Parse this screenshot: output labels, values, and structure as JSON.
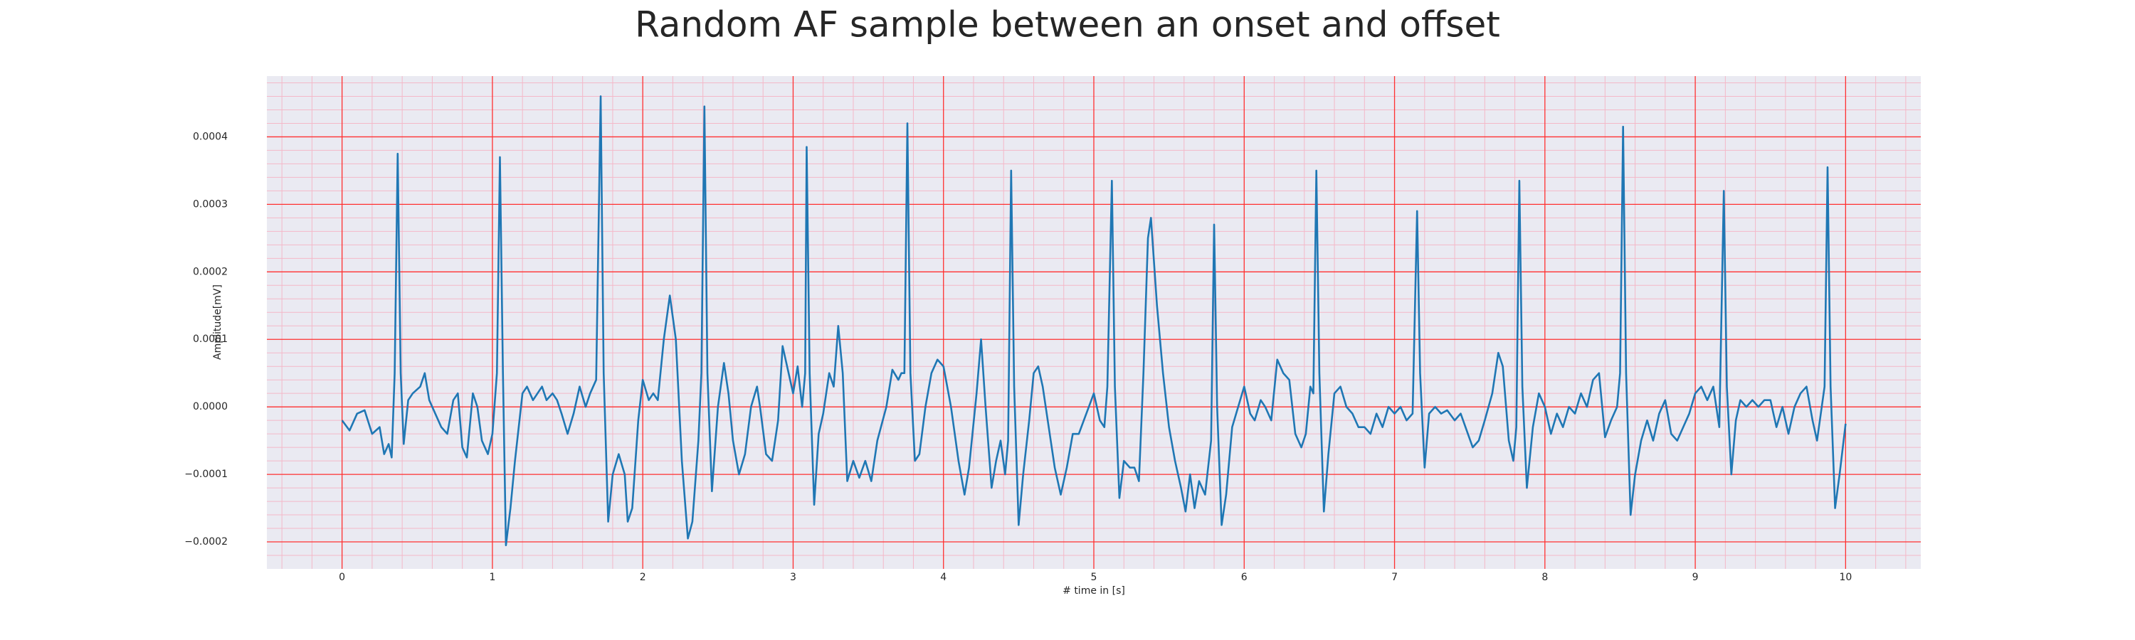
{
  "chart_data": {
    "type": "line",
    "title": "Random AF sample between an onset and offset",
    "xlabel": "# time in [s]",
    "ylabel": "Amplitude[mV]",
    "xlim": [
      -0.5,
      10.5
    ],
    "ylim": [
      -0.00024,
      0.00049
    ],
    "xticks": [
      0,
      1,
      2,
      3,
      4,
      5,
      6,
      7,
      8,
      9,
      10
    ],
    "yticks": [
      {
        "value": -0.0002,
        "label": "−0.0002"
      },
      {
        "value": -0.0001,
        "label": "−0.0001"
      },
      {
        "value": 0,
        "label": "0.0000"
      },
      {
        "value": 0.0001,
        "label": "0.0001"
      },
      {
        "value": 0.0002,
        "label": "0.0002"
      },
      {
        "value": 0.0003,
        "label": "0.0003"
      },
      {
        "value": 0.0004,
        "label": "0.0004"
      }
    ],
    "grid": true,
    "grid_color": "#ff3030",
    "minor_grid": 5,
    "minor_grid_color": "#f4b8c8",
    "background": "#eaeaf2",
    "color": "#1f77b4",
    "x": [
      0,
      0.05,
      0.1,
      0.15,
      0.2,
      0.25,
      0.28,
      0.31,
      0.33,
      0.35,
      0.37,
      0.39,
      0.41,
      0.44,
      0.47,
      0.52,
      0.55,
      0.58,
      0.62,
      0.66,
      0.7,
      0.74,
      0.77,
      0.8,
      0.83,
      0.87,
      0.9,
      0.93,
      0.97,
      1.0,
      1.03,
      1.05,
      1.07,
      1.09,
      1.12,
      1.15,
      1.2,
      1.23,
      1.27,
      1.3,
      1.33,
      1.36,
      1.4,
      1.43,
      1.46,
      1.5,
      1.54,
      1.58,
      1.62,
      1.65,
      1.69,
      1.72,
      1.74,
      1.77,
      1.8,
      1.84,
      1.88,
      1.9,
      1.93,
      1.97,
      2.0,
      2.04,
      2.07,
      2.1,
      2.14,
      2.18,
      2.22,
      2.26,
      2.3,
      2.33,
      2.37,
      2.39,
      2.41,
      2.43,
      2.46,
      2.5,
      2.54,
      2.57,
      2.6,
      2.64,
      2.68,
      2.72,
      2.76,
      2.78,
      2.82,
      2.86,
      2.9,
      2.93,
      2.96,
      3.0,
      3.03,
      3.06,
      3.08,
      3.09,
      3.11,
      3.14,
      3.17,
      3.2,
      3.24,
      3.27,
      3.3,
      3.33,
      3.36,
      3.4,
      3.44,
      3.48,
      3.52,
      3.56,
      3.62,
      3.66,
      3.7,
      3.72,
      3.74,
      3.76,
      3.78,
      3.81,
      3.84,
      3.88,
      3.92,
      3.96,
      4.0,
      4.05,
      4.1,
      4.14,
      4.17,
      4.22,
      4.25,
      4.28,
      4.32,
      4.35,
      4.38,
      4.41,
      4.43,
      4.45,
      4.47,
      4.5,
      4.53,
      4.57,
      4.6,
      4.63,
      4.66,
      4.7,
      4.74,
      4.78,
      4.82,
      4.86,
      4.9,
      4.95,
      5.0,
      5.04,
      5.07,
      5.09,
      5.12,
      5.14,
      5.17,
      5.2,
      5.24,
      5.27,
      5.3,
      5.33,
      5.36,
      5.38,
      5.42,
      5.46,
      5.5,
      5.54,
      5.58,
      5.61,
      5.64,
      5.67,
      5.7,
      5.74,
      5.78,
      5.8,
      5.82,
      5.85,
      5.88,
      5.92,
      5.96,
      6.0,
      6.04,
      6.07,
      6.11,
      6.14,
      6.18,
      6.22,
      6.26,
      6.3,
      6.34,
      6.38,
      6.41,
      6.44,
      6.46,
      6.48,
      6.5,
      6.53,
      6.56,
      6.6,
      6.64,
      6.68,
      6.72,
      6.76,
      6.8,
      6.84,
      6.88,
      6.92,
      6.96,
      7.0,
      7.04,
      7.08,
      7.12,
      7.15,
      7.17,
      7.2,
      7.23,
      7.27,
      7.31,
      7.35,
      7.4,
      7.44,
      7.48,
      7.52,
      7.56,
      7.6,
      7.65,
      7.69,
      7.72,
      7.76,
      7.79,
      7.81,
      7.83,
      7.85,
      7.88,
      7.92,
      7.96,
      8.0,
      8.04,
      8.08,
      8.12,
      8.16,
      8.2,
      8.24,
      8.28,
      8.32,
      8.36,
      8.4,
      8.44,
      8.48,
      8.5,
      8.52,
      8.54,
      8.57,
      8.6,
      8.64,
      8.68,
      8.72,
      8.76,
      8.8,
      8.84,
      8.88,
      8.92,
      8.96,
      9.0,
      9.04,
      9.08,
      9.12,
      9.16,
      9.19,
      9.21,
      9.24,
      9.27,
      9.3,
      9.34,
      9.38,
      9.42,
      9.46,
      9.5,
      9.54,
      9.58,
      9.62,
      9.66,
      9.7,
      9.74,
      9.78,
      9.81,
      9.86,
      9.88,
      9.9,
      9.93,
      9.96,
      10.0
    ],
    "values": [
      -2e-05,
      -3.5e-05,
      -1e-05,
      -5e-06,
      -4e-05,
      -3e-05,
      -7e-05,
      -5.5e-05,
      -7.5e-05,
      5e-05,
      0.000375,
      5e-05,
      -5.5e-05,
      1e-05,
      2e-05,
      3e-05,
      5e-05,
      1e-05,
      -1e-05,
      -3e-05,
      -4e-05,
      1e-05,
      2e-05,
      -6e-05,
      -7.5e-05,
      2e-05,
      0,
      -5e-05,
      -7e-05,
      -4e-05,
      5e-05,
      0.00037,
      5e-05,
      -0.000205,
      -0.00015,
      -8e-05,
      2e-05,
      3e-05,
      1e-05,
      2e-05,
      3e-05,
      1e-05,
      2e-05,
      1e-05,
      -1e-05,
      -4e-05,
      -1e-05,
      3e-05,
      0,
      2e-05,
      4e-05,
      0.00046,
      5e-05,
      -0.00017,
      -0.0001,
      -7e-05,
      -0.0001,
      -0.00017,
      -0.00015,
      -2e-05,
      4e-05,
      1e-05,
      2e-05,
      1e-05,
      0.0001,
      0.000165,
      0.0001,
      -8e-05,
      -0.000195,
      -0.00017,
      -5e-05,
      5e-05,
      0.000445,
      5e-05,
      -0.000125,
      0,
      6.5e-05,
      2e-05,
      -5e-05,
      -0.0001,
      -7e-05,
      0,
      3e-05,
      0,
      -7e-05,
      -8e-05,
      -2e-05,
      9e-05,
      6e-05,
      2e-05,
      6e-05,
      0,
      5e-05,
      0.000385,
      5e-05,
      -0.000145,
      -4e-05,
      -1e-05,
      5e-05,
      3e-05,
      0.00012,
      5e-05,
      -0.00011,
      -8e-05,
      -0.000105,
      -8e-05,
      -0.00011,
      -5e-05,
      0,
      5.5e-05,
      4e-05,
      5e-05,
      5e-05,
      0.00042,
      5e-05,
      -8e-05,
      -7e-05,
      0,
      5e-05,
      7e-05,
      6e-05,
      0,
      -8e-05,
      -0.00013,
      -9e-05,
      2e-05,
      0.0001,
      0,
      -0.00012,
      -8e-05,
      -5e-05,
      -0.0001,
      -5e-05,
      0.00035,
      3e-05,
      -0.000175,
      -0.0001,
      -2e-05,
      5e-05,
      6e-05,
      3e-05,
      -3e-05,
      -9e-05,
      -0.00013,
      -9e-05,
      -4e-05,
      -4e-05,
      -1e-05,
      2e-05,
      -2e-05,
      -3e-05,
      3e-05,
      0.000335,
      3e-05,
      -0.000135,
      -8e-05,
      -9e-05,
      -9e-05,
      -0.00011,
      5e-05,
      0.00025,
      0.00028,
      0.00015,
      5e-05,
      -3e-05,
      -8e-05,
      -0.00012,
      -0.000155,
      -0.0001,
      -0.00015,
      -0.00011,
      -0.00013,
      -5e-05,
      0.00027,
      0,
      -0.000175,
      -0.00013,
      -3e-05,
      0,
      3e-05,
      -1e-05,
      -2e-05,
      1e-05,
      0,
      -2e-05,
      7e-05,
      5e-05,
      4e-05,
      -4e-05,
      -6e-05,
      -4e-05,
      3e-05,
      2e-05,
      0.00035,
      5e-05,
      -0.000155,
      -7e-05,
      2e-05,
      3e-05,
      0,
      -1e-05,
      -3e-05,
      -3e-05,
      -4e-05,
      -1e-05,
      -3e-05,
      0,
      -1e-05,
      0,
      -2e-05,
      -1e-05,
      0.00029,
      5e-05,
      -9e-05,
      -1e-05,
      0,
      -1e-05,
      -5e-06,
      -2e-05,
      -1e-05,
      -3.5e-05,
      -6e-05,
      -5e-05,
      -2e-05,
      2e-05,
      8e-05,
      6e-05,
      -5e-05,
      -8e-05,
      -3e-05,
      0.000335,
      3e-05,
      -0.00012,
      -3e-05,
      2e-05,
      0,
      -4e-05,
      -1e-05,
      -3e-05,
      0,
      -1e-05,
      2e-05,
      0,
      4e-05,
      5e-05,
      -4.5e-05,
      -2e-05,
      0,
      5e-05,
      0.000415,
      5e-05,
      -0.00016,
      -0.0001,
      -5e-05,
      -2e-05,
      -5e-05,
      -1e-05,
      1e-05,
      -4e-05,
      -5e-05,
      -3e-05,
      -1e-05,
      2e-05,
      3e-05,
      1e-05,
      3e-05,
      -3e-05,
      0.00032,
      3e-05,
      -0.0001,
      -2e-05,
      1e-05,
      0,
      1e-05,
      0,
      1e-05,
      1e-05,
      -3e-05,
      0,
      -4e-05,
      0,
      2e-05,
      3e-05,
      -2e-05,
      -5e-05,
      3e-05,
      0.000355,
      3e-05,
      -0.00015,
      -0.0001,
      -2.5e-05
    ]
  }
}
